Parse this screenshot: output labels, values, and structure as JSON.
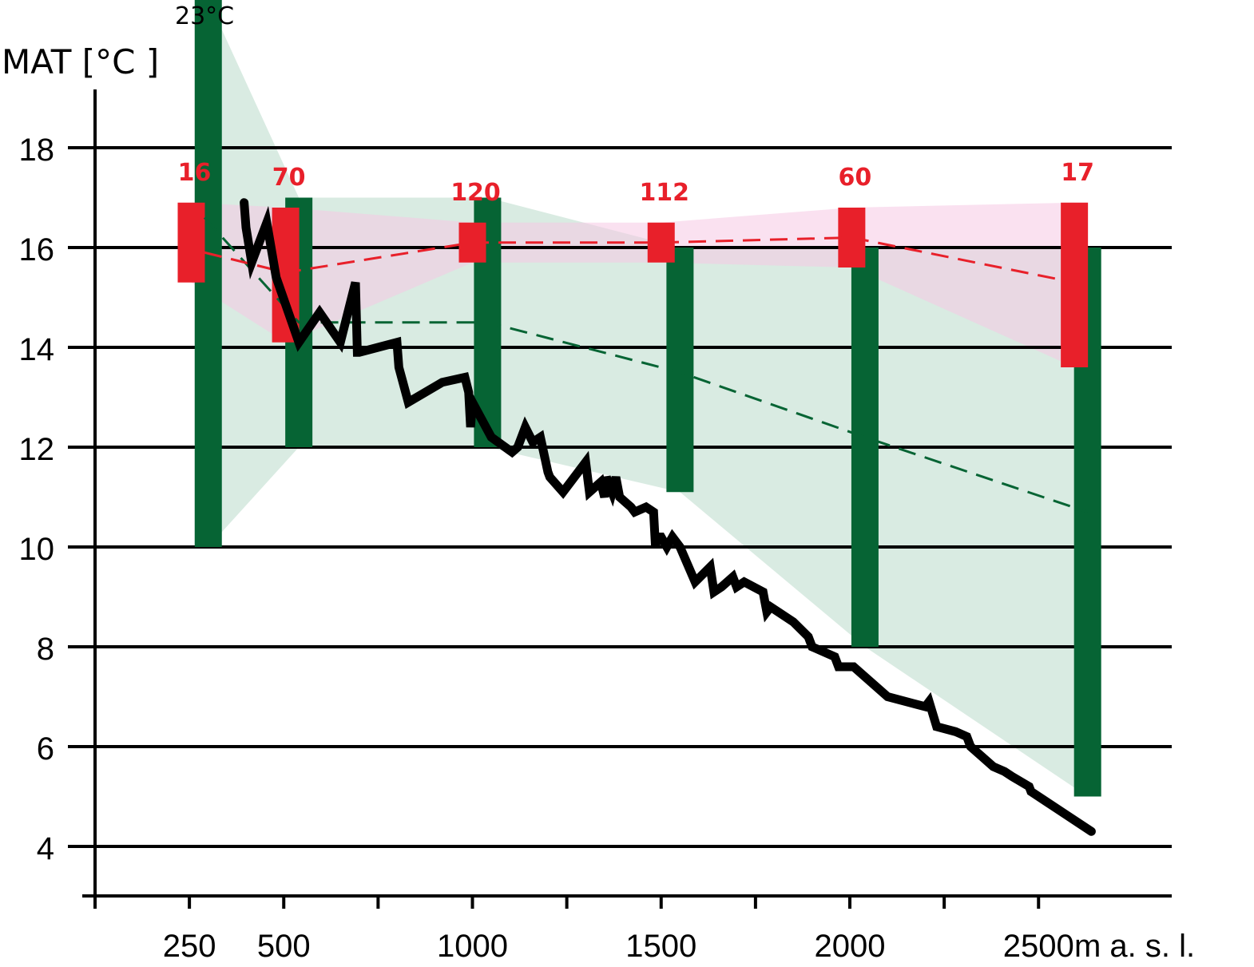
{
  "chart_data": {
    "type": "line",
    "ylabel": "MAT [°C ]",
    "xlabel": "m a. s. l.",
    "xlim": [
      0,
      2850
    ],
    "ylim": [
      3,
      19.2
    ],
    "x_ticks": [
      250,
      500,
      1000,
      1500,
      2000,
      2500
    ],
    "x_minor_ticks": [
      0,
      250,
      500,
      750,
      1000,
      1250,
      1500,
      1750,
      2000,
      2250,
      2500
    ],
    "y_ticks": [
      4,
      6,
      8,
      10,
      12,
      14,
      16,
      18
    ],
    "grid": true,
    "annotation_top": "23°C",
    "colors": {
      "green": "#066434",
      "green_band": "#c5e0d2",
      "red": "#e8202a",
      "pink_band": "#f6c8e4",
      "line": "#000000"
    },
    "green_ranges": [
      {
        "x": 300,
        "ymin": 10.0,
        "ymax": 23.0
      },
      {
        "x": 540,
        "ymin": 12.0,
        "ymax": 17.0
      },
      {
        "x": 1040,
        "ymin": 12.0,
        "ymax": 17.0
      },
      {
        "x": 1550,
        "ymin": 11.1,
        "ymax": 16.0
      },
      {
        "x": 2040,
        "ymin": 8.0,
        "ymax": 16.0
      },
      {
        "x": 2630,
        "ymin": 5.0,
        "ymax": 16.0
      }
    ],
    "red_ranges": [
      {
        "x": 255,
        "ymin": 15.3,
        "ymax": 16.9,
        "count": "16"
      },
      {
        "x": 505,
        "ymin": 14.1,
        "ymax": 16.8,
        "count": "70"
      },
      {
        "x": 1000,
        "ymin": 15.7,
        "ymax": 16.5,
        "count": "120"
      },
      {
        "x": 1500,
        "ymin": 15.7,
        "ymax": 16.5,
        "count": "112"
      },
      {
        "x": 2005,
        "ymin": 15.6,
        "ymax": 16.8,
        "count": "60"
      },
      {
        "x": 2595,
        "ymin": 13.6,
        "ymax": 16.9,
        "count": "17"
      }
    ],
    "green_mean_dashed": {
      "x": [
        290,
        540,
        1040,
        1550,
        2040,
        2630
      ],
      "y": [
        16.6,
        14.5,
        14.5,
        13.5,
        12.2,
        10.7
      ]
    },
    "red_mean_dashed": {
      "x": [
        290,
        505,
        1000,
        1500,
        2005,
        2595
      ],
      "y": [
        15.9,
        15.5,
        16.1,
        16.1,
        16.2,
        15.3
      ]
    },
    "green_band": {
      "upper": {
        "x": [
          300,
          540,
          1040,
          1550,
          2040,
          2630
        ],
        "y": [
          23.0,
          17.0,
          17.0,
          16.0,
          16.0,
          16.0
        ]
      },
      "lower": {
        "x": [
          300,
          540,
          1040,
          1550,
          2040,
          2630
        ],
        "y": [
          10.0,
          12.0,
          12.0,
          11.1,
          8.0,
          5.0
        ]
      }
    },
    "pink_band": {
      "upper": {
        "x": [
          255,
          505,
          1000,
          1500,
          2005,
          2595
        ],
        "y": [
          16.9,
          16.8,
          16.5,
          16.5,
          16.8,
          16.9
        ]
      },
      "lower": {
        "x": [
          255,
          505,
          1000,
          1500,
          2005,
          2595
        ],
        "y": [
          15.3,
          14.1,
          15.7,
          15.7,
          15.6,
          13.6
        ]
      }
    },
    "series": [
      {
        "x": [
          395,
          400,
          415,
          455,
          480,
          540,
          595,
          650,
          690,
          695,
          700,
          800,
          805,
          830,
          920,
          980,
          990,
          995,
          1000,
          1050,
          1105,
          1120,
          1140,
          1160,
          1180,
          1200,
          1205,
          1240,
          1300,
          1310,
          1340,
          1350,
          1355,
          1370,
          1380,
          1390,
          1420,
          1430,
          1460,
          1480,
          1485,
          1490,
          1500,
          1515,
          1530,
          1550,
          1590,
          1630,
          1640,
          1660,
          1690,
          1700,
          1720,
          1770,
          1780,
          1790,
          1850,
          1890,
          1900,
          1960,
          1970,
          2010,
          2100,
          2200,
          2210,
          2230,
          2280,
          2310,
          2320,
          2350,
          2380,
          2410,
          2430,
          2475,
          2480,
          2520,
          2640
        ],
        "y": [
          16.9,
          16.4,
          15.7,
          16.5,
          15.4,
          14.1,
          14.7,
          14.1,
          15.3,
          13.9,
          13.9,
          14.1,
          13.6,
          12.9,
          13.3,
          13.4,
          13.1,
          12.4,
          12.9,
          12.2,
          11.9,
          12.0,
          12.4,
          12.1,
          12.2,
          11.5,
          11.4,
          11.1,
          11.7,
          11.1,
          11.3,
          11.0,
          11.4,
          11.1,
          11.4,
          11.0,
          10.8,
          10.7,
          10.8,
          10.7,
          10.0,
          10.2,
          10.2,
          10.0,
          10.2,
          10.0,
          9.3,
          9.6,
          9.1,
          9.2,
          9.4,
          9.2,
          9.3,
          9.1,
          8.7,
          8.8,
          8.5,
          8.2,
          8.0,
          7.8,
          7.6,
          7.6,
          7.0,
          6.8,
          6.9,
          6.4,
          6.3,
          6.2,
          6.0,
          5.8,
          5.6,
          5.5,
          5.4,
          5.2,
          5.1,
          4.9,
          4.3
        ]
      }
    ]
  }
}
